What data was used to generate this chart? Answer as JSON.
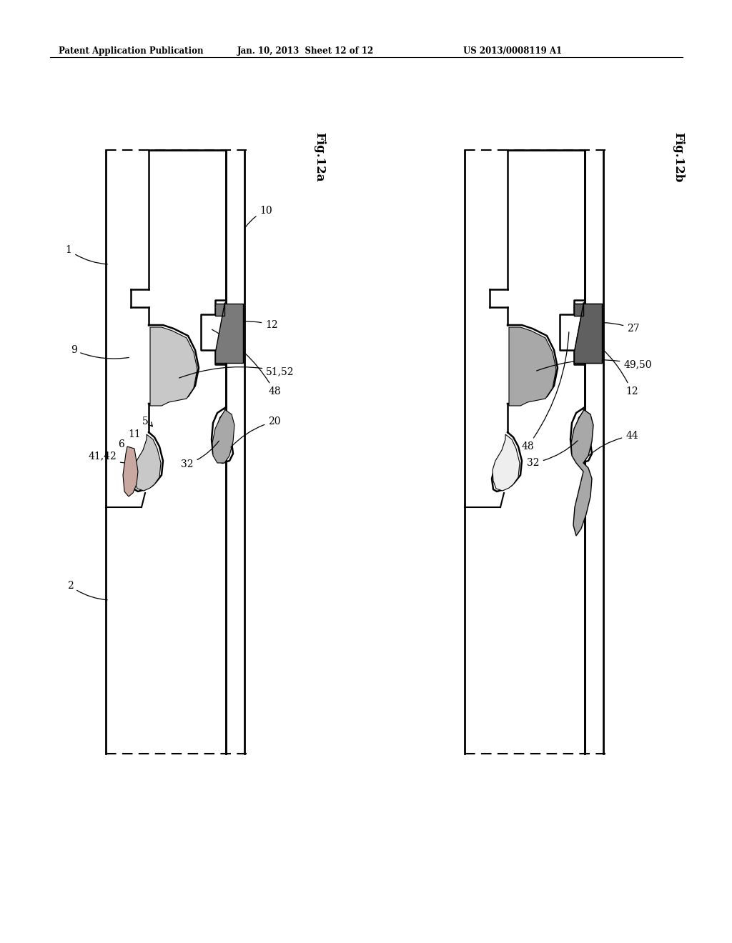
{
  "header_left": "Patent Application Publication",
  "header_center": "Jan. 10, 2013  Sheet 12 of 12",
  "header_right": "US 2013/0008119 A1",
  "fig_a_label": "Fig.12a",
  "fig_b_label": "Fig.12b",
  "bg": "#ffffff",
  "lc": "#000000",
  "gray_dark": "#7a7a7a",
  "gray_med": "#a8a8a8",
  "gray_light": "#c8c8c8",
  "gray_dotted": "#d0d0d0"
}
